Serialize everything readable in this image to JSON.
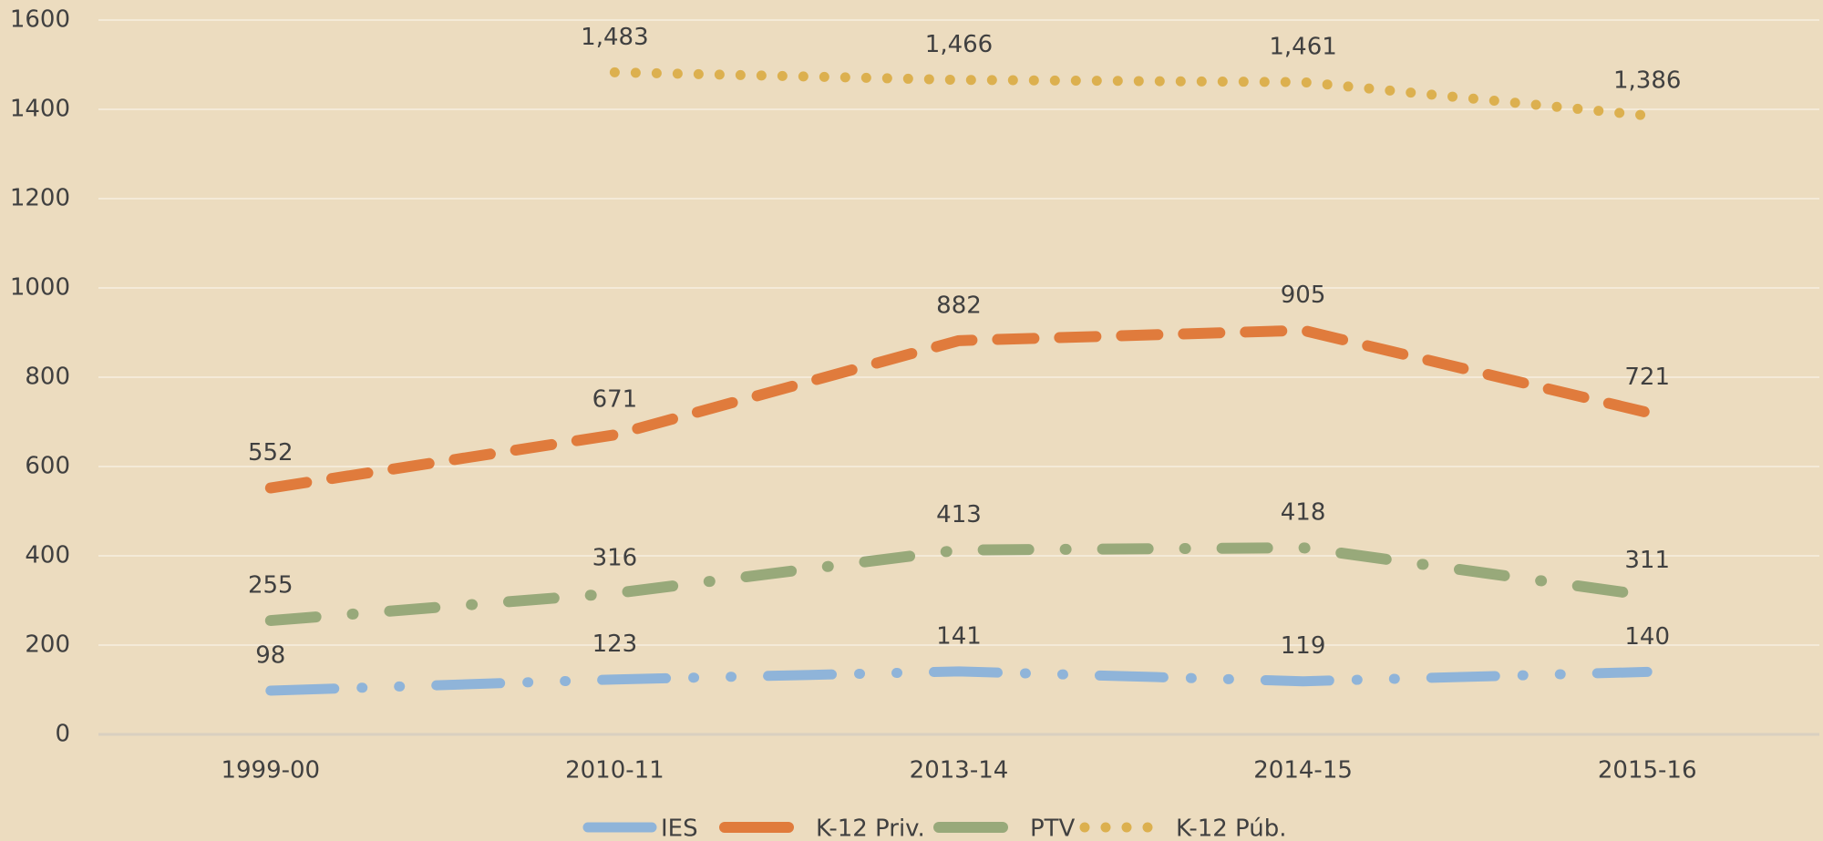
{
  "chart_data": {
    "type": "line",
    "categories": [
      "1999-00",
      "2010-11",
      "2013-14",
      "2014-15",
      "2015-16"
    ],
    "series": [
      {
        "name": "IES",
        "color": "#8fb4d9",
        "values": [
          98,
          123,
          141,
          119,
          140
        ]
      },
      {
        "name": "K-12 Priv.",
        "color": "#e07b3c",
        "values": [
          552,
          671,
          882,
          905,
          721
        ]
      },
      {
        "name": "PTV",
        "color": "#98a97a",
        "values": [
          255,
          316,
          413,
          418,
          311
        ]
      },
      {
        "name": "K-12 Púb.",
        "color": "#dcb04f",
        "values": [
          null,
          1483,
          1466,
          1461,
          1386
        ],
        "value_labels": [
          null,
          "1,483",
          "1,466",
          "1,461",
          "1,386"
        ]
      }
    ],
    "ylim": [
      0,
      1600
    ],
    "yticks": [
      0,
      200,
      400,
      600,
      800,
      1000,
      1200,
      1400,
      1600
    ],
    "grid": true
  }
}
